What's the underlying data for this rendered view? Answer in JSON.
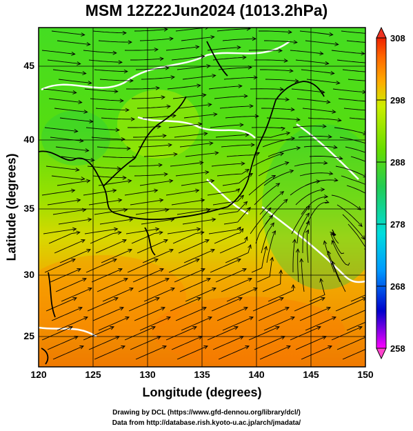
{
  "title": "MSM 12Z22Jun2024 (1013.2hPa)",
  "chart_data": {
    "type": "heatmap",
    "title": "MSM 12Z22Jun2024 (1013.2hPa)",
    "xlabel": "Longitude (degrees)",
    "ylabel": "Latitude  (degrees)",
    "xlim": [
      120,
      150
    ],
    "ylim": [
      22.4,
      47.6
    ],
    "x_ticks": [
      "120",
      "125",
      "130",
      "135",
      "140",
      "145",
      "150"
    ],
    "y_ticks": [
      "25",
      "30",
      "35",
      "40",
      "45"
    ],
    "grid": true,
    "colorbar": {
      "min": 258,
      "max": 308,
      "ticks": [
        "308",
        "298",
        "288",
        "278",
        "268",
        "258"
      ],
      "colors": [
        "#ff00ff",
        "#0000cc",
        "#0099ff",
        "#00dddd",
        "#22cc55",
        "#66dd00",
        "#ccee00",
        "#ffaa00",
        "#ff6600",
        "#ee2200"
      ]
    },
    "overlay": "streamlines"
  },
  "footer": {
    "line1": "Drawing by DCL (https://www.gfd-dennou.org/library/dcl/)",
    "line2": "Data from http://database.rish.kyoto-u.ac.jp/arch/jmadata/"
  }
}
